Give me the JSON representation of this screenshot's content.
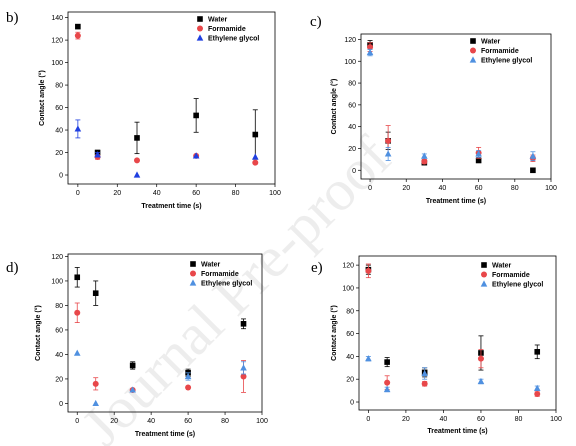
{
  "watermark": "Journal Pre-proof",
  "chart_data": [
    {
      "type": "scatter",
      "panel": "b)",
      "xlabel": "Treatment time (s)",
      "ylabel": "Contact angle (°)",
      "xlim": [
        -5,
        100
      ],
      "ylim": [
        -8,
        145
      ],
      "xticks": [
        0,
        20,
        40,
        60,
        80,
        100
      ],
      "yticks": [
        0,
        20,
        40,
        60,
        80,
        100,
        120,
        140
      ],
      "legend": "top-right",
      "grid": false,
      "series": [
        {
          "name": "Water",
          "marker": "square",
          "color": "#000000",
          "x": [
            0,
            10,
            30,
            60,
            90
          ],
          "y": [
            132,
            20,
            33,
            53,
            36
          ],
          "err": [
            0,
            2,
            14,
            15,
            22
          ]
        },
        {
          "name": "Formamide",
          "marker": "circle",
          "color": "#e8474a",
          "x": [
            0,
            10,
            30,
            60,
            90
          ],
          "y": [
            124,
            16,
            13,
            17,
            11
          ],
          "err": [
            3,
            2,
            0,
            0,
            0
          ]
        },
        {
          "name": "Ethylene glycol",
          "marker": "triangle",
          "color": "#1f3fe0",
          "x": [
            0,
            10,
            30,
            60,
            90
          ],
          "y": [
            41,
            18,
            0,
            17,
            16
          ],
          "err": [
            8,
            2,
            0,
            0,
            0
          ]
        }
      ]
    },
    {
      "type": "scatter",
      "panel": "c)",
      "xlabel": "Treatment time (s)",
      "ylabel": "Contact angle (°)",
      "xlim": [
        -5,
        100
      ],
      "ylim": [
        -8,
        125
      ],
      "xticks": [
        0,
        20,
        40,
        60,
        80,
        100
      ],
      "yticks": [
        0,
        20,
        40,
        60,
        80,
        100,
        120
      ],
      "legend": "top-right",
      "grid": false,
      "series": [
        {
          "name": "Water",
          "marker": "square",
          "color": "#000000",
          "x": [
            0,
            10,
            30,
            60,
            90
          ],
          "y": [
            115,
            27,
            7,
            9,
            0
          ],
          "err": [
            4,
            8,
            2,
            2,
            0
          ]
        },
        {
          "name": "Formamide",
          "marker": "circle",
          "color": "#e8474a",
          "x": [
            0,
            10,
            30,
            60,
            90
          ],
          "y": [
            113,
            27,
            8,
            16,
            11
          ],
          "err": [
            4,
            14,
            2,
            5,
            3
          ]
        },
        {
          "name": "Ethylene glycol",
          "marker": "triangle",
          "color": "#4f90e0",
          "x": [
            0,
            10,
            30,
            60,
            90
          ],
          "y": [
            108,
            15,
            13,
            15,
            13
          ],
          "err": [
            3,
            6,
            2,
            3,
            4
          ]
        }
      ]
    },
    {
      "type": "scatter",
      "panel": "d)",
      "xlabel": "Treatment time (s)",
      "ylabel": "Contact angle (°)",
      "xlim": [
        -5,
        100
      ],
      "ylim": [
        -7,
        122
      ],
      "xticks": [
        0,
        20,
        40,
        60,
        80,
        100
      ],
      "yticks": [
        0,
        20,
        40,
        60,
        80,
        100,
        120
      ],
      "legend": "top-right",
      "grid": false,
      "series": [
        {
          "name": "Water",
          "marker": "square",
          "color": "#000000",
          "x": [
            0,
            10,
            30,
            60,
            90
          ],
          "y": [
            103,
            90,
            31,
            25,
            65
          ],
          "err": [
            8,
            10,
            3,
            3,
            4
          ]
        },
        {
          "name": "Formamide",
          "marker": "circle",
          "color": "#e8474a",
          "x": [
            0,
            10,
            30,
            60,
            90
          ],
          "y": [
            74,
            16,
            11,
            13,
            22
          ],
          "err": [
            8,
            5,
            0,
            0,
            13
          ]
        },
        {
          "name": "Ethylene glycol",
          "marker": "triangle",
          "color": "#4f90e0",
          "x": [
            0,
            10,
            30,
            60,
            90
          ],
          "y": [
            41,
            0,
            11,
            22,
            29
          ],
          "err": [
            0,
            0,
            0,
            3,
            5
          ]
        }
      ]
    },
    {
      "type": "scatter",
      "panel": "e)",
      "xlabel": "Treatment time (s)",
      "ylabel": "Contact angle (°)",
      "xlim": [
        -5,
        100
      ],
      "ylim": [
        -7,
        128
      ],
      "xticks": [
        0,
        20,
        40,
        60,
        80,
        100
      ],
      "yticks": [
        0,
        20,
        40,
        60,
        80,
        100,
        120
      ],
      "legend": "top-right",
      "grid": false,
      "series": [
        {
          "name": "Water",
          "marker": "square",
          "color": "#000000",
          "x": [
            0,
            10,
            30,
            60,
            90
          ],
          "y": [
            116,
            35,
            26,
            43,
            44
          ],
          "err": [
            4,
            4,
            4,
            15,
            6
          ]
        },
        {
          "name": "Formamide",
          "marker": "circle",
          "color": "#e8474a",
          "x": [
            0,
            10,
            30,
            60,
            90
          ],
          "y": [
            115,
            17,
            16,
            38,
            7
          ],
          "err": [
            6,
            6,
            2,
            8,
            2
          ]
        },
        {
          "name": "Ethylene glycol",
          "marker": "triangle",
          "color": "#4f90e0",
          "x": [
            0,
            10,
            30,
            60,
            90
          ],
          "y": [
            38,
            11,
            25,
            18,
            12
          ],
          "err": [
            2,
            2,
            5,
            2,
            2
          ]
        }
      ]
    }
  ]
}
